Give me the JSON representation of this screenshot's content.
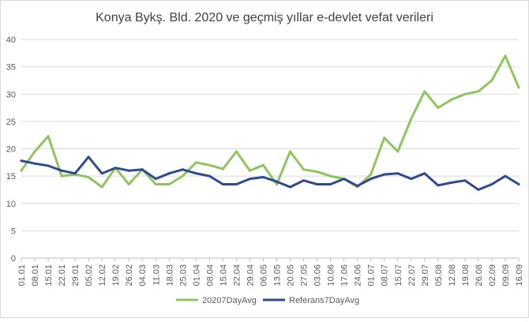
{
  "chart_data": {
    "type": "line",
    "title": "Konya Bykş. Bld. 2020 ve geçmiş yıllar e-devlet vefat verileri",
    "xlabel": "",
    "ylabel": "",
    "ylim": [
      0,
      40
    ],
    "yticks": [
      0,
      5,
      10,
      15,
      20,
      25,
      30,
      35,
      40
    ],
    "grid": true,
    "legend_position": "bottom",
    "x_start": "01.01",
    "x_end": "16.09",
    "x_tick_labels": [
      "01.01",
      "08.01",
      "15.01",
      "22.01",
      "29.01",
      "05.02",
      "12.02",
      "19.02",
      "26.02",
      "04.03",
      "11.03",
      "18.03",
      "25.03",
      "01.04",
      "08.04",
      "15.04",
      "22.04",
      "29.04",
      "06.05",
      "13.05",
      "20.05",
      "27.05",
      "03.06",
      "10.06",
      "17.06",
      "24.06",
      "01.07",
      "08.07",
      "15.07",
      "22.07",
      "29.07",
      "05.08",
      "12.08",
      "19.08",
      "26.08",
      "02.09",
      "09.09",
      "16.09"
    ],
    "x": [
      "01.01",
      "08.01",
      "15.01",
      "22.01",
      "29.01",
      "05.02",
      "12.02",
      "19.02",
      "26.02",
      "04.03",
      "11.03",
      "18.03",
      "25.03",
      "01.04",
      "08.04",
      "15.04",
      "22.04",
      "29.04",
      "06.05",
      "13.05",
      "20.05",
      "27.05",
      "03.06",
      "10.06",
      "17.06",
      "24.06",
      "01.07",
      "08.07",
      "15.07",
      "22.07",
      "29.07",
      "05.08",
      "12.08",
      "19.08",
      "26.08",
      "02.09",
      "09.09",
      "16.09"
    ],
    "series": [
      {
        "name": "20207DayAvg",
        "color": "#8fc45e",
        "values": [
          16.0,
          19.5,
          22.3,
          15.0,
          15.3,
          14.8,
          13.0,
          16.5,
          13.5,
          16.2,
          13.5,
          13.5,
          15.0,
          17.5,
          17.0,
          16.3,
          19.5,
          16.0,
          17.0,
          13.5,
          19.5,
          16.2,
          15.8,
          15.0,
          14.5,
          13.0,
          15.3,
          22.0,
          19.5,
          25.5,
          30.5,
          27.5,
          29.0,
          30.0,
          30.5,
          32.5,
          37.0,
          31.2
        ]
      },
      {
        "name": "Referans7DayAvg",
        "color": "#2f4b8e",
        "values": [
          17.8,
          17.3,
          16.9,
          16.0,
          15.5,
          18.5,
          15.5,
          16.5,
          16.0,
          16.2,
          14.5,
          15.5,
          16.2,
          15.5,
          15.0,
          13.5,
          13.5,
          14.5,
          14.8,
          14.0,
          13.0,
          14.2,
          13.5,
          13.5,
          14.5,
          13.2,
          14.5,
          15.3,
          15.5,
          14.5,
          15.5,
          13.3,
          13.8,
          14.2,
          12.5,
          13.5,
          15.0,
          13.5
        ]
      }
    ]
  }
}
